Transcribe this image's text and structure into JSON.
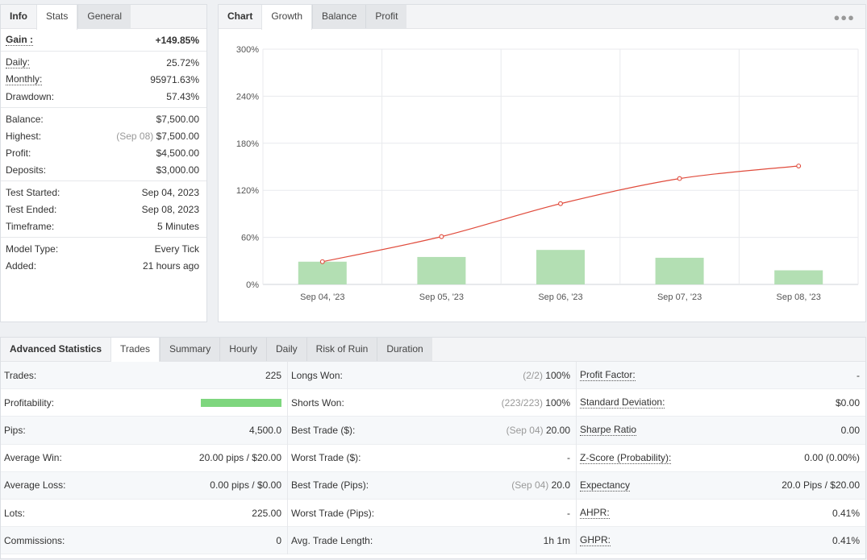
{
  "info": {
    "tabs": [
      "Info",
      "Stats",
      "General"
    ],
    "gain": {
      "label": "Gain :",
      "value": "+149.85%"
    },
    "daily": {
      "label": "Daily:",
      "value": "25.72%"
    },
    "monthly": {
      "label": "Monthly:",
      "value": "95971.63%"
    },
    "drawdown": {
      "label": "Drawdown:",
      "value": "57.43%"
    },
    "balance": {
      "label": "Balance:",
      "value": "$7,500.00"
    },
    "highest": {
      "label": "Highest:",
      "date": "(Sep 08)",
      "value": "$7,500.00"
    },
    "profit": {
      "label": "Profit:",
      "value": "$4,500.00"
    },
    "deposits": {
      "label": "Deposits:",
      "value": "$3,000.00"
    },
    "test_started": {
      "label": "Test Started:",
      "value": "Sep 04, 2023"
    },
    "test_ended": {
      "label": "Test Ended:",
      "value": "Sep 08, 2023"
    },
    "timeframe": {
      "label": "Timeframe:",
      "value": "5 Minutes"
    },
    "model_type": {
      "label": "Model Type:",
      "value": "Every Tick"
    },
    "added": {
      "label": "Added:",
      "value": "21 hours ago"
    }
  },
  "chart_tabs": [
    "Chart",
    "Growth",
    "Balance",
    "Profit"
  ],
  "more_icon": "more-dots-icon",
  "chart_data": {
    "type": "bar",
    "categories": [
      "Sep 04, '23",
      "Sep 05, '23",
      "Sep 06, '23",
      "Sep 07, '23",
      "Sep 08, '23"
    ],
    "series": [
      {
        "values": [
          29,
          35,
          44,
          34,
          18
        ],
        "color": "#b3dfb3"
      },
      {
        "type": "line",
        "values": [
          29,
          61,
          103,
          135,
          151
        ],
        "color": "#e04b3c"
      }
    ],
    "y_ticks": [
      "0%",
      "60%",
      "120%",
      "180%",
      "240%",
      "300%"
    ],
    "ylim": [
      0,
      300
    ],
    "grid": true
  },
  "stats": {
    "tabs": [
      "Advanced Statistics",
      "Trades",
      "Summary",
      "Hourly",
      "Daily",
      "Risk of Ruin",
      "Duration"
    ],
    "col1": [
      {
        "label": "Trades:",
        "value": "225"
      },
      {
        "label": "Profitability:",
        "value": ""
      },
      {
        "label": "Pips:",
        "value": "4,500.0"
      },
      {
        "label": "Average Win:",
        "value": "20.00 pips / $20.00"
      },
      {
        "label": "Average Loss:",
        "value": "0.00 pips / $0.00"
      },
      {
        "label": "Lots:",
        "value": "225.00"
      },
      {
        "label": "Commissions:",
        "value": "0"
      }
    ],
    "col2": [
      {
        "label": "Longs Won:",
        "muted": "(2/2)",
        "value": "100%"
      },
      {
        "label": "Shorts Won:",
        "muted": "(223/223)",
        "value": "100%"
      },
      {
        "label": "Best Trade ($):",
        "muted": "(Sep 04)",
        "value": "20.00"
      },
      {
        "label": "Worst Trade ($):",
        "muted": "",
        "value": "-"
      },
      {
        "label": "Best Trade (Pips):",
        "muted": "(Sep 04)",
        "value": "20.0"
      },
      {
        "label": "Worst Trade (Pips):",
        "muted": "",
        "value": "-"
      },
      {
        "label": "Avg. Trade Length:",
        "muted": "",
        "value": "1h 1m"
      }
    ],
    "col3": [
      {
        "label": "Profit Factor:",
        "value": "-"
      },
      {
        "label": "Standard Deviation:",
        "value": "$0.00"
      },
      {
        "label": "Sharpe Ratio",
        "value": "0.00"
      },
      {
        "label": "Z-Score (Probability):",
        "value": "0.00 (0.00%)"
      },
      {
        "label": "Expectancy",
        "value": "20.0 Pips / $20.00"
      },
      {
        "label": "AHPR:",
        "value": "0.41%"
      },
      {
        "label": "GHPR:",
        "value": "0.41%"
      }
    ],
    "profitability_fraction": 1.0,
    "profitability_color": "#7ed67e"
  }
}
